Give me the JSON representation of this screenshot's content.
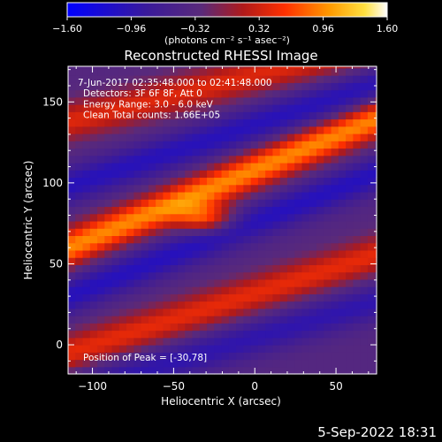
{
  "chart_data": {
    "type": "heatmap",
    "title": "Reconstructed RHESSI Image",
    "xlabel": "Heliocentric X (arcsec)",
    "ylabel": "Heliocentric Y (arcsec)",
    "xlim": [
      -115,
      75
    ],
    "ylim": [
      -18,
      172
    ],
    "x_ticks": [
      -100,
      -50,
      0,
      50
    ],
    "x_tick_labels": [
      "−100",
      "−50",
      "0",
      "50"
    ],
    "y_ticks": [
      0,
      50,
      100,
      150
    ],
    "y_tick_labels": [
      "0",
      "50",
      "100",
      "150"
    ],
    "colorbar": {
      "range": [
        -1.6,
        1.6
      ],
      "ticks": [
        -1.6,
        -0.96,
        -0.32,
        0.32,
        0.96,
        1.6
      ],
      "tick_labels": [
        "−1.60",
        "−0.96",
        "−0.32",
        "0.32",
        "0.96",
        "1.60"
      ],
      "unit_label": "(photons cm⁻² s⁻¹ asec⁻²)",
      "colormap": "blue-purple-red-yellow-white"
    },
    "annotations": [
      "7-Jun-2017 02:35:48.000 to 02:41:48.000",
      "Detectors: 3F 6F 8F, Att 0",
      "Energy Range: 3.0 - 6.0 keV",
      "Clean    Total counts: 1.66E+05"
    ],
    "peak_label": "Position of Peak = [-30,78]",
    "peak": [
      -30,
      78
    ],
    "ridges": [
      {
        "x0": -115,
        "y0": 138,
        "slope": 0.25,
        "amp": 0.75
      },
      {
        "x0": -115,
        "y0": 60,
        "slope": 0.42,
        "amp": 1.3
      },
      {
        "x0": -115,
        "y0": -5,
        "slope": 0.32,
        "amp": 0.8
      }
    ],
    "troughs": [
      {
        "x0": -115,
        "y0": 98,
        "slope": 0.33,
        "amp": -0.7
      },
      {
        "x0": -115,
        "y0": 30,
        "slope": 0.4,
        "amp": -0.72
      },
      {
        "x0": -115,
        "y0": -30,
        "slope": 0.3,
        "amp": -0.6
      }
    ]
  },
  "footer_date": "5-Sep-2022 18:31"
}
